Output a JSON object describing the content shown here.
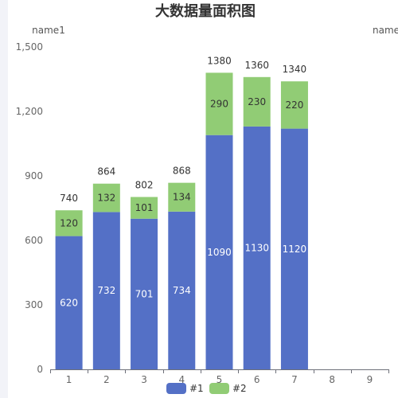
{
  "chart_data": {
    "type": "bar",
    "stacked": true,
    "title": "大数据量面积图",
    "yaxis_name": "name1",
    "yaxis_name_right": "name",
    "categories": [
      "1",
      "2",
      "3",
      "4",
      "5",
      "6",
      "7",
      "8",
      "9"
    ],
    "series": [
      {
        "name": "#1",
        "color": "#5470c6",
        "values": [
          620,
          732,
          701,
          734,
          1090,
          1130,
          1120,
          null,
          null
        ]
      },
      {
        "name": "#2",
        "color": "#91cc75",
        "values": [
          120,
          132,
          101,
          134,
          290,
          230,
          220,
          null,
          null
        ]
      }
    ],
    "totals": [
      740,
      864,
      802,
      868,
      1380,
      1360,
      1340,
      null,
      null
    ],
    "yticks": [
      0,
      300,
      600,
      900,
      1200,
      1500
    ],
    "ytick_labels": [
      "0",
      "300",
      "600",
      "900",
      "1,200",
      "1,500"
    ],
    "ylim": [
      0,
      1500
    ],
    "grid": false,
    "legend_position": "bottom-center"
  }
}
